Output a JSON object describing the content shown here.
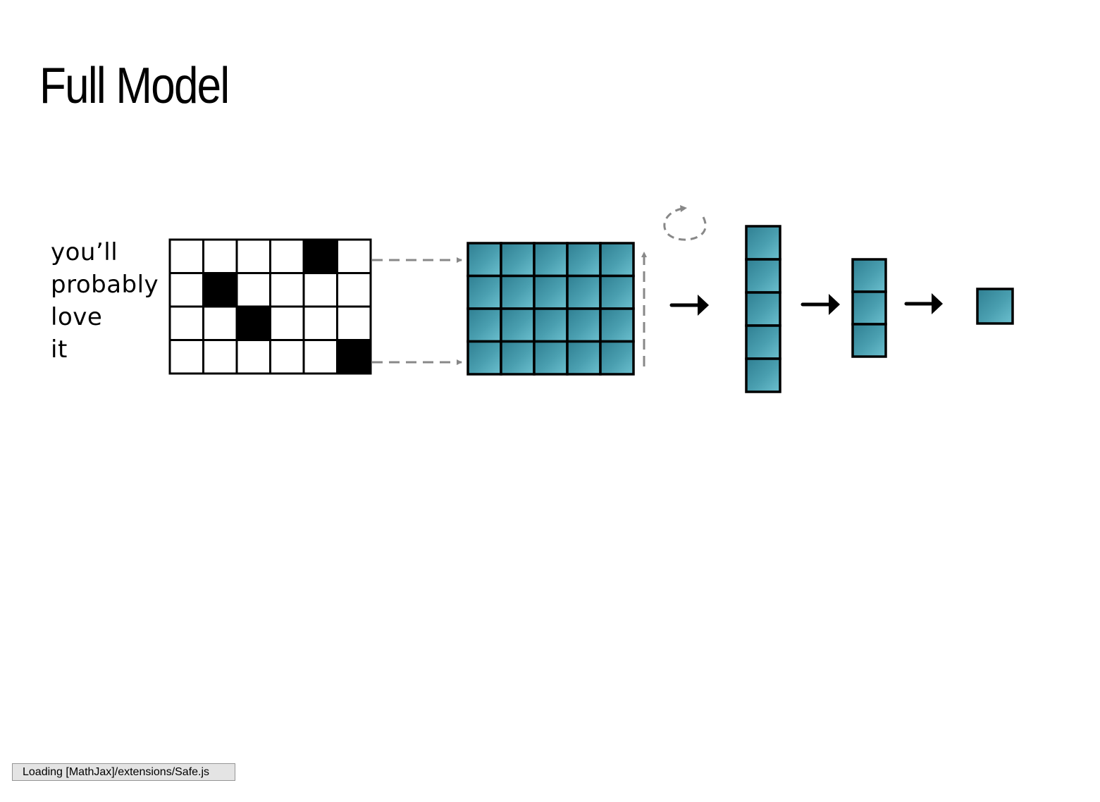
{
  "slide": {
    "title": "Full Model"
  },
  "input": {
    "words": [
      "you’ll",
      "probably",
      "love",
      "it"
    ],
    "one_hot_columns": 6,
    "active_column_per_word": [
      4,
      1,
      2,
      5
    ]
  },
  "embedding": {
    "rows": 4,
    "cols": 5
  },
  "hidden_layers": [
    {
      "units": 5
    },
    {
      "units": 3
    },
    {
      "units": 1
    }
  ],
  "colors": {
    "cell_fill": "#4a9fb0",
    "cell_highlight": "#6cc0cf",
    "cell_shadow": "#2f7f92",
    "dashed_arrow": "#888888",
    "ink": "#000000",
    "status_bg": "#e4e4e4"
  },
  "status": {
    "text": "Loading [MathJax]/extensions/Safe.js"
  }
}
